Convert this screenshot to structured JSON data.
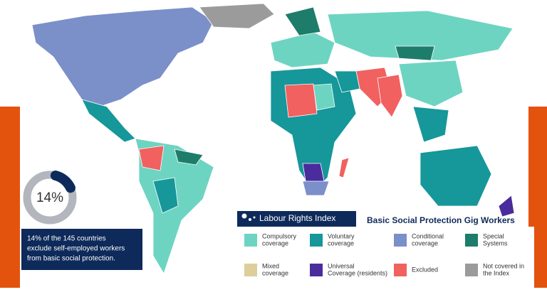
{
  "donut": {
    "value": 14,
    "label": "14%",
    "max": 100
  },
  "note": [
    "14% of the 145 countries",
    "exclude self-employed workers",
    "from basic social protection."
  ],
  "brand": "Labour Rights Index",
  "title": "Basic Social Protection Gig Workers",
  "legend": [
    {
      "lines": [
        "Compulsory",
        "coverage"
      ],
      "color": "#6dd4c2"
    },
    {
      "lines": [
        "Voluntary",
        "coverage"
      ],
      "color": "#16979a"
    },
    {
      "lines": [
        "Conditional",
        "coverage"
      ],
      "color": "#7b8fc9"
    },
    {
      "lines": [
        "Special",
        "Systems"
      ],
      "color": "#1e7c6b"
    },
    {
      "lines": [
        "Mixed",
        "coverage"
      ],
      "color": "#dccf9b"
    },
    {
      "lines": [
        "Universal",
        "Coverage (residents)"
      ],
      "color": "#4a2c9c"
    },
    {
      "lines": [
        "Excluded"
      ],
      "color": "#f0615f"
    },
    {
      "lines": [
        "Not covered in",
        "the Index"
      ],
      "color": "#9b9b9b"
    }
  ]
}
